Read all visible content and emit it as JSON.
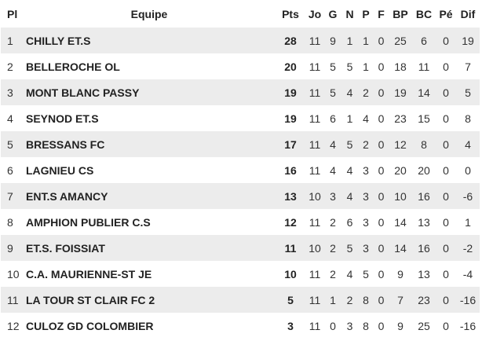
{
  "headers": {
    "pl": "Pl",
    "team": "Equipe",
    "pts": "Pts",
    "jo": "Jo",
    "g": "G",
    "n": "N",
    "p": "P",
    "f": "F",
    "bp": "BP",
    "bc": "BC",
    "pe": "Pé",
    "dif": "Dif"
  },
  "rows": [
    {
      "pl": "1",
      "team": "CHILLY ET.S",
      "pts": "28",
      "jo": "11",
      "g": "9",
      "n": "1",
      "p": "1",
      "f": "0",
      "bp": "25",
      "bc": "6",
      "pe": "0",
      "dif": "19"
    },
    {
      "pl": "2",
      "team": "BELLEROCHE OL",
      "pts": "20",
      "jo": "11",
      "g": "5",
      "n": "5",
      "p": "1",
      "f": "0",
      "bp": "18",
      "bc": "11",
      "pe": "0",
      "dif": "7"
    },
    {
      "pl": "3",
      "team": "MONT BLANC PASSY",
      "pts": "19",
      "jo": "11",
      "g": "5",
      "n": "4",
      "p": "2",
      "f": "0",
      "bp": "19",
      "bc": "14",
      "pe": "0",
      "dif": "5"
    },
    {
      "pl": "4",
      "team": "SEYNOD ET.S",
      "pts": "19",
      "jo": "11",
      "g": "6",
      "n": "1",
      "p": "4",
      "f": "0",
      "bp": "23",
      "bc": "15",
      "pe": "0",
      "dif": "8"
    },
    {
      "pl": "5",
      "team": "BRESSANS FC",
      "pts": "17",
      "jo": "11",
      "g": "4",
      "n": "5",
      "p": "2",
      "f": "0",
      "bp": "12",
      "bc": "8",
      "pe": "0",
      "dif": "4"
    },
    {
      "pl": "6",
      "team": "LAGNIEU CS",
      "pts": "16",
      "jo": "11",
      "g": "4",
      "n": "4",
      "p": "3",
      "f": "0",
      "bp": "20",
      "bc": "20",
      "pe": "0",
      "dif": "0"
    },
    {
      "pl": "7",
      "team": "ENT.S AMANCY",
      "pts": "13",
      "jo": "10",
      "g": "3",
      "n": "4",
      "p": "3",
      "f": "0",
      "bp": "10",
      "bc": "16",
      "pe": "0",
      "dif": "-6"
    },
    {
      "pl": "8",
      "team": "AMPHION PUBLIER C.S",
      "pts": "12",
      "jo": "11",
      "g": "2",
      "n": "6",
      "p": "3",
      "f": "0",
      "bp": "14",
      "bc": "13",
      "pe": "0",
      "dif": "1"
    },
    {
      "pl": "9",
      "team": "ET.S. FOISSIAT",
      "pts": "11",
      "jo": "10",
      "g": "2",
      "n": "5",
      "p": "3",
      "f": "0",
      "bp": "14",
      "bc": "16",
      "pe": "0",
      "dif": "-2"
    },
    {
      "pl": "10",
      "team": "C.A. MAURIENNE-ST JE",
      "pts": "10",
      "jo": "11",
      "g": "2",
      "n": "4",
      "p": "5",
      "f": "0",
      "bp": "9",
      "bc": "13",
      "pe": "0",
      "dif": "-4"
    },
    {
      "pl": "11",
      "team": "LA TOUR ST CLAIR FC 2",
      "pts": "5",
      "jo": "11",
      "g": "1",
      "n": "2",
      "p": "8",
      "f": "0",
      "bp": "7",
      "bc": "23",
      "pe": "0",
      "dif": "-16"
    },
    {
      "pl": "12",
      "team": "CULOZ GD COLOMBIER",
      "pts": "3",
      "jo": "11",
      "g": "0",
      "n": "3",
      "p": "8",
      "f": "0",
      "bp": "9",
      "bc": "25",
      "pe": "0",
      "dif": "-16"
    }
  ]
}
